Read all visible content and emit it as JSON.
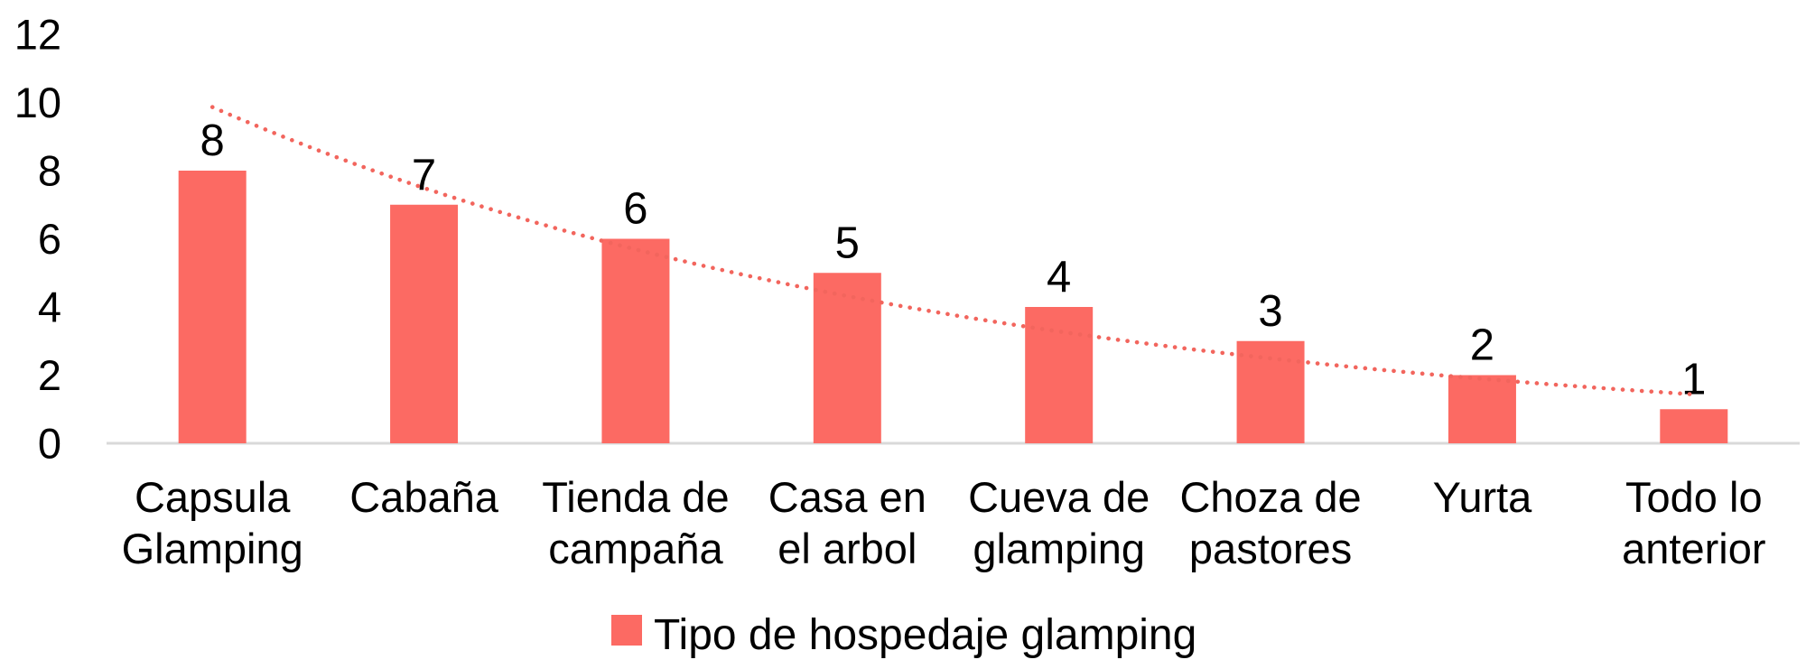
{
  "chart_data": {
    "type": "bar",
    "title": "",
    "xlabel": "",
    "ylabel": "",
    "categories": [
      "Capsula Glamping",
      "Cabaña",
      "Tienda de campaña",
      "Casa en el arbol",
      "Cueva de glamping",
      "Choza de pastores",
      "Yurta",
      "Todo lo anterior"
    ],
    "category_lines": [
      [
        "Capsula",
        "Glamping"
      ],
      [
        "Cabaña"
      ],
      [
        "Tienda de",
        "campaña"
      ],
      [
        "Casa en",
        "el arbol"
      ],
      [
        "Cueva de",
        "glamping"
      ],
      [
        "Choza de",
        "pastores"
      ],
      [
        "Yurta"
      ],
      [
        "Todo lo",
        "anterior"
      ]
    ],
    "values": [
      8,
      7,
      6,
      5,
      4,
      3,
      2,
      1
    ],
    "data_labels": [
      "8",
      "7",
      "6",
      "5",
      "4",
      "3",
      "2",
      "1"
    ],
    "y_ticks": [
      0,
      2,
      4,
      6,
      8,
      10,
      12
    ],
    "ylim": [
      0,
      12
    ],
    "grid": false,
    "legend": {
      "label": "Tipo de hospedaje glamping",
      "position": "bottom"
    },
    "trendline": {
      "type": "exponential",
      "style": "dotted"
    },
    "colors": {
      "bar": "#FC6A63",
      "trendline": "#F2655D",
      "axis_line": "#D9D9D9",
      "text": "#000000"
    }
  }
}
